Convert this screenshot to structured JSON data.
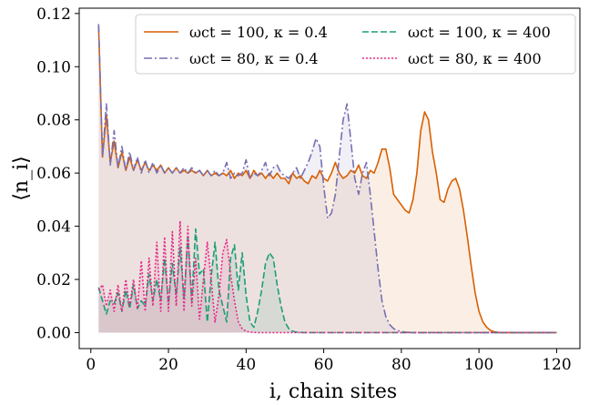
{
  "chart_data": {
    "type": "line",
    "xlabel": "i, chain sites",
    "ylabel": "⟨n_i⟩",
    "xlim": [
      -3,
      126
    ],
    "ylim": [
      -0.006,
      0.122
    ],
    "xticks": [
      0,
      20,
      40,
      60,
      80,
      100,
      120
    ],
    "yticks": [
      0.0,
      0.02,
      0.04,
      0.06,
      0.08,
      0.1,
      0.12
    ],
    "ytick_labels": [
      "0.00",
      "0.02",
      "0.04",
      "0.06",
      "0.08",
      "0.10",
      "0.12"
    ],
    "grid": false,
    "legend": {
      "placement": "top-right",
      "columns": 2
    },
    "series": [
      {
        "name": "ωct = 100, κ = 0.4",
        "color": "#d95f02",
        "dash": "solid",
        "fill": true,
        "x": [
          2,
          3,
          4,
          5,
          6,
          7,
          8,
          9,
          10,
          11,
          12,
          13,
          14,
          15,
          16,
          17,
          18,
          19,
          20,
          21,
          22,
          23,
          24,
          25,
          26,
          27,
          28,
          29,
          30,
          31,
          32,
          33,
          34,
          35,
          36,
          37,
          38,
          39,
          40,
          41,
          42,
          43,
          44,
          45,
          46,
          47,
          48,
          49,
          50,
          51,
          52,
          53,
          54,
          55,
          56,
          57,
          58,
          59,
          60,
          61,
          62,
          63,
          64,
          65,
          66,
          67,
          68,
          69,
          70,
          71,
          72,
          73,
          74,
          75,
          76,
          77,
          78,
          79,
          80,
          81,
          82,
          83,
          84,
          85,
          86,
          87,
          88,
          89,
          90,
          91,
          92,
          93,
          94,
          95,
          96,
          97,
          98,
          99,
          100,
          101,
          102,
          103,
          104,
          105,
          106,
          107,
          108,
          110,
          115,
          120
        ],
        "y": [
          0.115,
          0.066,
          0.082,
          0.064,
          0.072,
          0.062,
          0.068,
          0.061,
          0.066,
          0.061,
          0.065,
          0.061,
          0.064,
          0.061,
          0.063,
          0.061,
          0.063,
          0.06,
          0.062,
          0.06,
          0.062,
          0.06,
          0.061,
          0.06,
          0.061,
          0.06,
          0.061,
          0.059,
          0.061,
          0.059,
          0.06,
          0.059,
          0.06,
          0.059,
          0.061,
          0.058,
          0.06,
          0.059,
          0.061,
          0.058,
          0.061,
          0.059,
          0.06,
          0.058,
          0.06,
          0.058,
          0.06,
          0.058,
          0.058,
          0.056,
          0.06,
          0.058,
          0.059,
          0.057,
          0.056,
          0.059,
          0.058,
          0.061,
          0.058,
          0.057,
          0.06,
          0.064,
          0.06,
          0.058,
          0.059,
          0.061,
          0.06,
          0.063,
          0.059,
          0.058,
          0.061,
          0.06,
          0.064,
          0.069,
          0.069,
          0.062,
          0.052,
          0.05,
          0.048,
          0.046,
          0.045,
          0.05,
          0.06,
          0.076,
          0.083,
          0.08,
          0.068,
          0.06,
          0.05,
          0.049,
          0.054,
          0.057,
          0.058,
          0.054,
          0.046,
          0.036,
          0.025,
          0.015,
          0.008,
          0.004,
          0.002,
          0.0008,
          0.0003,
          0.0001,
          0.0,
          0.0,
          0.0,
          0.0,
          0.0,
          0.0
        ]
      },
      {
        "name": "ωct = 80, κ = 0.4",
        "color": "#7570b3",
        "dash": "dashdot",
        "fill": true,
        "x": [
          2,
          3,
          4,
          5,
          6,
          7,
          8,
          9,
          10,
          11,
          12,
          13,
          14,
          15,
          16,
          17,
          18,
          19,
          20,
          21,
          22,
          23,
          24,
          25,
          26,
          27,
          28,
          29,
          30,
          31,
          32,
          33,
          34,
          35,
          36,
          37,
          38,
          39,
          40,
          41,
          42,
          43,
          44,
          45,
          46,
          47,
          48,
          49,
          50,
          51,
          52,
          53,
          54,
          55,
          56,
          57,
          58,
          59,
          60,
          61,
          62,
          63,
          64,
          65,
          66,
          67,
          68,
          69,
          70,
          71,
          72,
          73,
          74,
          75,
          76,
          77,
          78,
          79,
          80,
          81,
          82,
          83,
          84,
          85,
          86,
          87,
          88,
          89,
          90,
          95,
          100,
          110,
          120
        ],
        "y": [
          0.116,
          0.066,
          0.086,
          0.063,
          0.076,
          0.062,
          0.07,
          0.061,
          0.068,
          0.061,
          0.066,
          0.06,
          0.065,
          0.06,
          0.064,
          0.06,
          0.063,
          0.06,
          0.062,
          0.06,
          0.062,
          0.06,
          0.062,
          0.06,
          0.062,
          0.06,
          0.061,
          0.059,
          0.061,
          0.059,
          0.061,
          0.059,
          0.06,
          0.064,
          0.058,
          0.06,
          0.059,
          0.06,
          0.065,
          0.058,
          0.06,
          0.059,
          0.061,
          0.064,
          0.059,
          0.062,
          0.063,
          0.06,
          0.059,
          0.058,
          0.06,
          0.062,
          0.058,
          0.061,
          0.064,
          0.068,
          0.073,
          0.07,
          0.055,
          0.043,
          0.045,
          0.052,
          0.066,
          0.08,
          0.086,
          0.072,
          0.058,
          0.052,
          0.06,
          0.064,
          0.052,
          0.038,
          0.024,
          0.012,
          0.006,
          0.003,
          0.0015,
          0.0008,
          0.0004,
          0.0002,
          0.0001,
          0.0,
          0.0,
          0.0,
          0.0,
          0.0,
          0.0,
          0.0,
          0.0,
          0.0,
          0.0,
          0.0,
          0.0
        ]
      },
      {
        "name": "ωct = 100, κ = 400",
        "color": "#1b9e77",
        "dash": "dashed",
        "fill": true,
        "x": [
          2,
          3,
          4,
          5,
          6,
          7,
          8,
          9,
          10,
          11,
          12,
          13,
          14,
          15,
          16,
          17,
          18,
          19,
          20,
          21,
          22,
          23,
          24,
          25,
          26,
          27,
          28,
          29,
          30,
          31,
          32,
          33,
          34,
          35,
          36,
          37,
          38,
          39,
          40,
          41,
          42,
          43,
          44,
          45,
          46,
          47,
          48,
          49,
          50,
          51,
          52,
          53,
          54,
          55,
          56,
          58,
          60,
          70,
          80,
          90,
          100,
          110,
          120
        ],
        "y": [
          0.017,
          0.012,
          0.007,
          0.012,
          0.011,
          0.015,
          0.008,
          0.016,
          0.009,
          0.018,
          0.009,
          0.012,
          0.01,
          0.022,
          0.012,
          0.02,
          0.012,
          0.028,
          0.011,
          0.026,
          0.014,
          0.032,
          0.013,
          0.036,
          0.012,
          0.039,
          0.022,
          0.024,
          0.004,
          0.021,
          0.034,
          0.016,
          0.01,
          0.004,
          0.028,
          0.033,
          0.016,
          0.03,
          0.014,
          0.004,
          0.002,
          0.008,
          0.016,
          0.026,
          0.03,
          0.028,
          0.018,
          0.01,
          0.004,
          0.0015,
          0.0005,
          0.0002,
          0.0001,
          0.0,
          0.0,
          0.0,
          0.0,
          0.0,
          0.0,
          0.0,
          0.0,
          0.0,
          0.0
        ]
      },
      {
        "name": "ωct = 80, κ = 400",
        "color": "#e7298a",
        "dash": "dotted",
        "fill": true,
        "x": [
          2,
          3,
          4,
          5,
          6,
          7,
          8,
          9,
          10,
          11,
          12,
          13,
          14,
          15,
          16,
          17,
          18,
          19,
          20,
          21,
          22,
          23,
          24,
          25,
          26,
          27,
          28,
          29,
          30,
          31,
          32,
          33,
          34,
          35,
          36,
          37,
          38,
          39,
          40,
          41,
          42,
          43,
          44,
          45,
          46,
          48,
          50,
          60,
          70,
          80,
          90,
          100,
          110,
          120
        ],
        "y": [
          0.016,
          0.018,
          0.01,
          0.016,
          0.008,
          0.018,
          0.008,
          0.02,
          0.01,
          0.02,
          0.009,
          0.027,
          0.008,
          0.028,
          0.01,
          0.034,
          0.008,
          0.036,
          0.008,
          0.038,
          0.01,
          0.042,
          0.008,
          0.04,
          0.01,
          0.028,
          0.005,
          0.02,
          0.034,
          0.02,
          0.004,
          0.014,
          0.03,
          0.035,
          0.022,
          0.012,
          0.004,
          0.0015,
          0.0005,
          0.0002,
          0.0001,
          0.0,
          0.0,
          0.0,
          0.0,
          0.0,
          0.0,
          0.0,
          0.0,
          0.0,
          0.0,
          0.0,
          0.0,
          0.0
        ]
      }
    ]
  }
}
